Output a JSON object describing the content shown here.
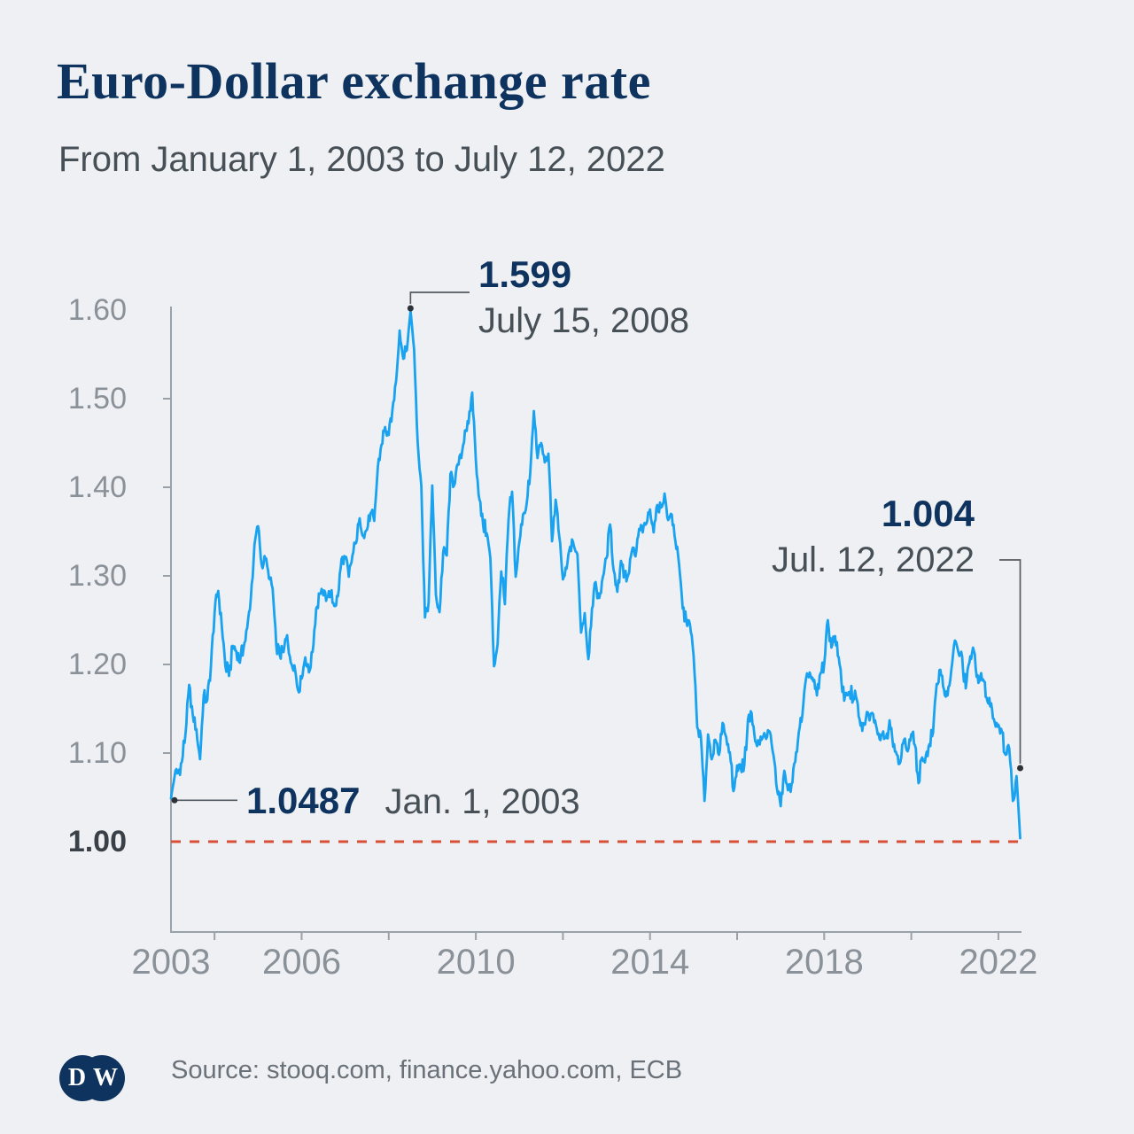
{
  "header": {
    "title": "Euro-Dollar exchange rate",
    "subtitle": "From January 1, 2003 to July 12, 2022"
  },
  "footer": {
    "source": "Source: stooq.com, finance.yahoo.com, ECB",
    "logo": {
      "left_letter": "D",
      "right_letter": "W"
    }
  },
  "chart_data": {
    "type": "line",
    "title": "Euro-Dollar exchange rate",
    "xlabel": "",
    "ylabel": "",
    "x_range": [
      2003.0,
      2022.53
    ],
    "y_range_shown": [
      1.0,
      1.6
    ],
    "grid": false,
    "legend": "none",
    "y_ticks": [
      {
        "label": "1.60",
        "value": 1.6,
        "bold": false
      },
      {
        "label": "1.50",
        "value": 1.5,
        "bold": false
      },
      {
        "label": "1.40",
        "value": 1.4,
        "bold": false
      },
      {
        "label": "1.30",
        "value": 1.3,
        "bold": false
      },
      {
        "label": "1.20",
        "value": 1.2,
        "bold": false
      },
      {
        "label": "1.10",
        "value": 1.1,
        "bold": false
      },
      {
        "label": "1.00",
        "value": 1.0,
        "bold": true
      }
    ],
    "x_ticks_labeled": [
      {
        "label": "2003",
        "year": 2003
      },
      {
        "label": "2006",
        "year": 2006
      },
      {
        "label": "2010",
        "year": 2010
      },
      {
        "label": "2014",
        "year": 2014
      },
      {
        "label": "2018",
        "year": 2018
      },
      {
        "label": "2022",
        "year": 2022
      }
    ],
    "x_ticks_minor_years": [
      2004,
      2006,
      2008,
      2010,
      2012,
      2014,
      2016,
      2018,
      2020,
      2022
    ],
    "baseline": {
      "value": 1.0,
      "style": "dashed",
      "color": "#d94f35"
    },
    "series": [
      {
        "name": "EUR-USD exchange rate",
        "start_year": 2003,
        "points_per_year": 12,
        "values": [
          1.0487,
          1.074,
          1.078,
          1.09,
          1.122,
          1.177,
          1.143,
          1.127,
          1.093,
          1.165,
          1.16,
          1.198,
          1.258,
          1.283,
          1.244,
          1.198,
          1.187,
          1.221,
          1.215,
          1.202,
          1.218,
          1.241,
          1.274,
          1.335,
          1.356,
          1.312,
          1.32,
          1.297,
          1.286,
          1.222,
          1.21,
          1.214,
          1.233,
          1.202,
          1.199,
          1.171,
          1.184,
          1.208,
          1.191,
          1.214,
          1.263,
          1.28,
          1.278,
          1.276,
          1.281,
          1.266,
          1.277,
          1.319,
          1.32,
          1.299,
          1.323,
          1.337,
          1.365,
          1.345,
          1.352,
          1.371,
          1.362,
          1.423,
          1.448,
          1.468,
          1.459,
          1.487,
          1.519,
          1.577,
          1.545,
          1.555,
          1.599,
          1.556,
          1.45,
          1.401,
          1.253,
          1.27,
          1.402,
          1.279,
          1.259,
          1.326,
          1.323,
          1.415,
          1.402,
          1.426,
          1.433,
          1.464,
          1.472,
          1.507,
          1.431,
          1.386,
          1.357,
          1.348,
          1.32,
          1.198,
          1.223,
          1.305,
          1.268,
          1.363,
          1.395,
          1.299,
          1.338,
          1.369,
          1.381,
          1.416,
          1.486,
          1.433,
          1.45,
          1.428,
          1.438,
          1.339,
          1.386,
          1.344,
          1.296,
          1.308,
          1.333,
          1.334,
          1.324,
          1.236,
          1.258,
          1.206,
          1.263,
          1.293,
          1.275,
          1.299,
          1.32,
          1.358,
          1.306,
          1.282,
          1.317,
          1.3,
          1.301,
          1.328,
          1.322,
          1.353,
          1.349,
          1.359,
          1.375,
          1.349,
          1.38,
          1.377,
          1.393,
          1.363,
          1.369,
          1.339,
          1.313,
          1.263,
          1.249,
          1.245,
          1.21,
          1.129,
          1.119,
          1.046,
          1.121,
          1.093,
          1.115,
          1.098,
          1.134,
          1.118,
          1.101,
          1.057,
          1.086,
          1.083,
          1.087,
          1.138,
          1.145,
          1.113,
          1.11,
          1.117,
          1.116,
          1.124,
          1.098,
          1.059,
          1.04,
          1.08,
          1.058,
          1.065,
          1.09,
          1.124,
          1.143,
          1.184,
          1.191,
          1.181,
          1.165,
          1.19,
          1.2,
          1.25,
          1.219,
          1.232,
          1.208,
          1.169,
          1.168,
          1.169,
          1.16,
          1.16,
          1.131,
          1.132,
          1.146,
          1.145,
          1.137,
          1.122,
          1.121,
          1.117,
          1.137,
          1.107,
          1.098,
          1.09,
          1.115,
          1.102,
          1.121,
          1.109,
          1.066,
          1.095,
          1.097,
          1.11,
          1.123,
          1.178,
          1.194,
          1.172,
          1.165,
          1.193,
          1.227,
          1.213,
          1.209,
          1.173,
          1.202,
          1.219,
          1.186,
          1.187,
          1.181,
          1.158,
          1.156,
          1.134,
          1.132,
          1.124,
          1.098,
          1.105,
          1.046,
          1.074,
          1.004
        ]
      }
    ],
    "annotations": [
      {
        "id": "peak",
        "value": "1.599",
        "date": "July 15, 2008",
        "t": 2008.5,
        "v": 1.599
      },
      {
        "id": "end",
        "value": "1.004",
        "date": "Jul. 12, 2022",
        "t": 2022.5,
        "v": 1.004
      },
      {
        "id": "start",
        "value": "1.0487",
        "date": "Jan. 1, 2003",
        "t": 2003.0,
        "v": 1.0487
      }
    ],
    "colors": {
      "background": "#eef0f3",
      "line": "#18a2ef",
      "baseline_dashed": "#d94f35",
      "axis": "#9ba1a8",
      "tick_label": "#8a9198",
      "bold_tick_label": "#3a4047",
      "annotation_value": "#0e335f",
      "annotation_date": "#474f57",
      "connector": "#545a61",
      "title": "#0e335f",
      "source_text": "#6a7179"
    }
  }
}
